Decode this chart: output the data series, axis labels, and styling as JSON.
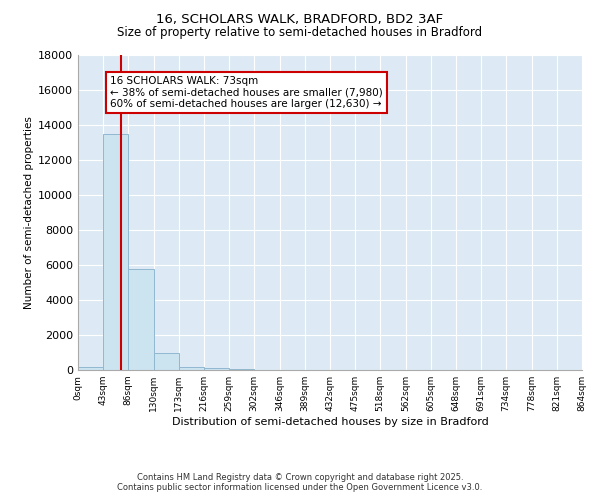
{
  "title1": "16, SCHOLARS WALK, BRADFORD, BD2 3AF",
  "title2": "Size of property relative to semi-detached houses in Bradford",
  "xlabel": "Distribution of semi-detached houses by size in Bradford",
  "ylabel": "Number of semi-detached properties",
  "footer1": "Contains HM Land Registry data © Crown copyright and database right 2025.",
  "footer2": "Contains public sector information licensed under the Open Government Licence v3.0.",
  "annotation_title": "16 SCHOLARS WALK: 73sqm",
  "annotation_line1": "← 38% of semi-detached houses are smaller (7,980)",
  "annotation_line2": "60% of semi-detached houses are larger (12,630) →",
  "subject_size": 73,
  "bin_edges": [
    0,
    43,
    86,
    130,
    173,
    216,
    259,
    302,
    346,
    389,
    432,
    475,
    518,
    562,
    605,
    648,
    691,
    734,
    778,
    821,
    864
  ],
  "bar_heights": [
    200,
    13500,
    5800,
    950,
    200,
    100,
    60,
    0,
    0,
    0,
    0,
    0,
    0,
    0,
    0,
    0,
    0,
    0,
    0,
    0
  ],
  "bar_color": "#cce4f0",
  "bar_edge_color": "#90b8d0",
  "subject_line_color": "#cc0000",
  "background_color": "#ddeaf5",
  "ylim": [
    0,
    18000
  ],
  "yticks": [
    0,
    2000,
    4000,
    6000,
    8000,
    10000,
    12000,
    14000,
    16000,
    18000
  ],
  "annotation_box_color": "#ffffff",
  "annotation_box_edge": "#cc0000",
  "grid_color": "#c0d4e8"
}
